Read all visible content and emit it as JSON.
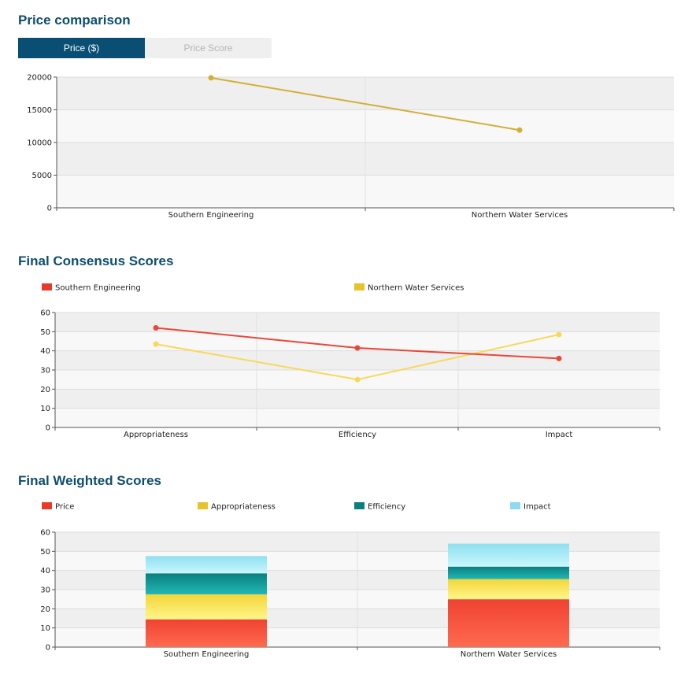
{
  "sections": {
    "price": {
      "title": "Price comparison",
      "tabs": [
        {
          "label": "Price ($)",
          "active": true
        },
        {
          "label": "Price Score",
          "active": false
        }
      ]
    },
    "consensus": {
      "title": "Final Consensus Scores"
    },
    "weighted": {
      "title": "Final Weighted Scores"
    }
  },
  "colors": {
    "price_line": "#d4af37",
    "southern": "#e8483a",
    "northern": "#f7d95a",
    "stack_price": "#f04a3a",
    "stack_appropriateness": "#f6e04a",
    "stack_efficiency": "#0f8f8f",
    "stack_impact": "#a6ecf7",
    "legend_southern": "#e83a2a",
    "legend_northern": "#e8c22a",
    "legend_price": "#e83a2a",
    "legend_appropriateness": "#e8c22a",
    "legend_efficiency": "#0b7f7f",
    "legend_impact": "#8ddbee"
  },
  "chart_data": [
    {
      "type": "line",
      "title": "Price comparison",
      "categories": [
        "Southern Engineering",
        "Northern Water Services"
      ],
      "series": [
        {
          "values": [
            19900,
            11900
          ]
        }
      ],
      "ylim": [
        0,
        20000
      ],
      "yticks": [
        0,
        5000,
        10000,
        15000,
        20000
      ],
      "grid": true,
      "legend": "none"
    },
    {
      "type": "line",
      "title": "Final Consensus Scores",
      "categories": [
        "Appropriateness",
        "Efficiency",
        "Impact"
      ],
      "series": [
        {
          "name": "Southern Engineering",
          "values": [
            52,
            41.5,
            36
          ]
        },
        {
          "name": "Northern Water Services",
          "values": [
            43.5,
            25,
            48.5
          ]
        }
      ],
      "ylim": [
        0,
        60
      ],
      "yticks": [
        0,
        10,
        20,
        30,
        40,
        50,
        60
      ],
      "grid": true,
      "legend": "top"
    },
    {
      "type": "bar",
      "stacked": true,
      "title": "Final Weighted Scores",
      "categories": [
        "Southern Engineering",
        "Northern Water Services"
      ],
      "series": [
        {
          "name": "Price",
          "values": [
            14.5,
            25
          ]
        },
        {
          "name": "Appropriateness",
          "values": [
            13,
            10.5
          ]
        },
        {
          "name": "Efficiency",
          "values": [
            11,
            6.5
          ]
        },
        {
          "name": "Impact",
          "values": [
            9,
            12
          ]
        }
      ],
      "ylim": [
        0,
        60
      ],
      "yticks": [
        0,
        10,
        20,
        30,
        40,
        50,
        60
      ],
      "grid": true,
      "legend": "top"
    }
  ]
}
